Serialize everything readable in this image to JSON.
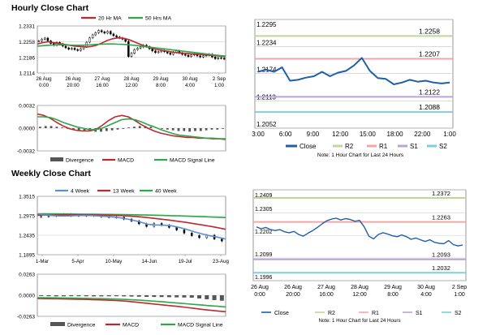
{
  "sections": {
    "hourly_title": "Hourly Close Chart",
    "weekly_title": "Weekly Close Chart"
  },
  "colors": {
    "price": "#000000",
    "ma_red": "#c0282f",
    "ma_green": "#2aa84a",
    "ma_blue": "#5a8fd0",
    "close_blue": "#1f5ea8",
    "r2": "#bcd79a",
    "r1": "#f2a7a3",
    "s1": "#b7a4d8",
    "s2": "#7fcde0",
    "divergence": "#555555",
    "grid": "#c8c8c8",
    "axis": "#808080"
  },
  "chart_data": [
    {
      "id": "hourly-price",
      "type": "line",
      "legend": [
        "20 Hr MA",
        "50 Hrs MA"
      ],
      "yticks": [
        "1.2331",
        "1.2258",
        "1.2186",
        "1.2114"
      ],
      "ylim": [
        1.2114,
        1.2331
      ],
      "xticks": [
        [
          "26 Aug",
          "0:00"
        ],
        [
          "26 Aug",
          "20:00"
        ],
        [
          "27 Aug",
          "16:00"
        ],
        [
          "28 Aug",
          "12:00"
        ],
        [
          "29 Aug",
          "8:00"
        ],
        [
          "30 Aug",
          "4:00"
        ],
        [
          "2 Sep",
          "1:00"
        ]
      ],
      "series": [
        {
          "name": "Price",
          "type": "candle",
          "values": [
            1.2262,
            1.227,
            1.2275,
            1.2262,
            1.225,
            1.2242,
            1.2255,
            1.2248,
            1.2238,
            1.223,
            1.2224,
            1.2228,
            1.2222,
            1.2218,
            1.2226,
            1.2236,
            1.2256,
            1.2276,
            1.229,
            1.23,
            1.231,
            1.2304,
            1.2298,
            1.2306,
            1.2294,
            1.2286,
            1.228,
            1.2276,
            1.227,
            1.226,
            1.219,
            1.2205,
            1.2222,
            1.2228,
            1.2234,
            1.2242,
            1.2236,
            1.2226,
            1.2216,
            1.2208,
            1.2212,
            1.2218,
            1.2212,
            1.2206,
            1.22,
            1.221,
            1.2216,
            1.2206,
            1.22,
            1.2196,
            1.219,
            1.2197,
            1.2202,
            1.2193,
            1.2188,
            1.2193,
            1.2196,
            1.22,
            1.2188,
            1.218,
            1.2184,
            1.2182,
            1.2178
          ]
        },
        {
          "name": "20 Hr MA",
          "values": [
            1.2248,
            1.2254,
            1.2258,
            1.2254,
            1.225,
            1.2246,
            1.2242,
            1.2238,
            1.2236,
            1.2234,
            1.2236,
            1.2242,
            1.2252,
            1.2264,
            1.2272,
            1.2276,
            1.2274,
            1.2268,
            1.2258,
            1.2248,
            1.2238,
            1.223,
            1.2224,
            1.2219,
            1.2215,
            1.2211,
            1.2208,
            1.2206,
            1.2204,
            1.2202,
            1.22,
            1.2198,
            1.2196,
            1.2194,
            1.2192,
            1.219
          ]
        },
        {
          "name": "50 Hrs MA",
          "values": [
            1.2238,
            1.224,
            1.2242,
            1.2243,
            1.2244,
            1.2244,
            1.2243,
            1.2242,
            1.2242,
            1.2243,
            1.2244,
            1.2246,
            1.2247,
            1.2248,
            1.2248,
            1.2247,
            1.2246,
            1.2244,
            1.2242,
            1.2239,
            1.2236,
            1.2233,
            1.223,
            1.2227,
            1.2224,
            1.2221,
            1.2218,
            1.2215,
            1.2212,
            1.2209,
            1.2206,
            1.2203,
            1.22,
            1.2197,
            1.2194,
            1.2192
          ]
        }
      ]
    },
    {
      "id": "hourly-macd",
      "type": "line",
      "legend": [
        "Divergence",
        "MACD",
        "MACD Signal Line"
      ],
      "yticks": [
        "0.0032",
        "0.0000",
        "-0.0032"
      ],
      "ylim": [
        -0.0032,
        0.0032
      ],
      "series": [
        {
          "name": "Divergence",
          "type": "bar",
          "values": [
            0.0002,
            0.0003,
            0.0003,
            0.0002,
            0.0001,
            -0.0001,
            -0.0002,
            -0.0003,
            -0.0004,
            -0.0004,
            -0.0005,
            -0.0005,
            -0.0004,
            -0.0003,
            -0.0002,
            -0.0001,
            0.0001,
            0.0002,
            0.0003,
            0.0003,
            0.0002,
            0.0001,
            -0.0001,
            -0.0002,
            -0.0003,
            -0.0004,
            -0.0004,
            -0.0005,
            -0.0004,
            -0.0004,
            -0.0003,
            -0.0002,
            -0.0002,
            -0.0001
          ]
        },
        {
          "name": "MACD",
          "values": [
            0.002,
            0.0018,
            0.0014,
            0.0008,
            0.0003,
            -0.0001,
            -0.0003,
            -0.0004,
            -0.0004,
            -0.0002,
            0.0004,
            0.0011,
            0.0016,
            0.0018,
            0.0016,
            0.0011,
            0.0005,
            0.0,
            -0.0004,
            -0.0007,
            -0.0009,
            -0.0011,
            -0.0012,
            -0.0013,
            -0.0013,
            -0.0014,
            -0.0014,
            -0.0015,
            -0.0015,
            -0.0016
          ]
        },
        {
          "name": "MACD Signal Line",
          "values": [
            0.0016,
            0.0016,
            0.0015,
            0.0012,
            0.0008,
            0.0005,
            0.0002,
            0.0,
            -0.0002,
            -0.0002,
            0.0,
            0.0004,
            0.0008,
            0.0012,
            0.0013,
            0.0012,
            0.0009,
            0.0005,
            0.0002,
            -0.0002,
            -0.0005,
            -0.0008,
            -0.001,
            -0.0011,
            -0.0012,
            -0.0013,
            -0.0014,
            -0.0014,
            -0.0015,
            -0.0015
          ]
        }
      ]
    },
    {
      "id": "hourly-pivots",
      "type": "line",
      "yticks": [
        "1.2295",
        "1.2234",
        "1.2174",
        "1.2113",
        "1.2052"
      ],
      "ylim": [
        1.2052,
        1.2295
      ],
      "xticks": [
        "3:00",
        "6:00",
        "9:00",
        "12:00",
        "15:00",
        "18:00",
        "22:00",
        "1:00"
      ],
      "levels": [
        {
          "name": "R2",
          "value": 1.2258,
          "label": "1.2258"
        },
        {
          "name": "R1",
          "value": 1.2207,
          "label": "1.2207"
        },
        {
          "name": "S1",
          "value": 1.2122,
          "label": "1.2122"
        },
        {
          "name": "S2",
          "value": 1.2088,
          "label": "1.2088"
        }
      ],
      "series": [
        {
          "name": "Close",
          "values": [
            1.2178,
            1.2183,
            1.2178,
            1.2188,
            1.2158,
            1.216,
            1.2165,
            1.2168,
            1.2178,
            1.2168,
            1.2176,
            1.218,
            1.2192,
            1.2209,
            1.218,
            1.2164,
            1.2162,
            1.215,
            1.2154,
            1.216,
            1.2156,
            1.2158,
            1.2154,
            1.2152,
            1.2154
          ]
        }
      ],
      "legend": [
        "Close",
        "R2",
        "R1",
        "S1",
        "S2"
      ],
      "note": "Note: 1 Hour Chart for Last 24 Hours"
    },
    {
      "id": "weekly-price",
      "type": "line",
      "legend": [
        "4 Week",
        "13 Week",
        "40 Week"
      ],
      "yticks": [
        "1.3515",
        "1.2975",
        "1.2435",
        "1.1895"
      ],
      "ylim": [
        1.1895,
        1.3515
      ],
      "xticks": [
        "1-Mar",
        "5-Apr",
        "10-May",
        "14-Jun",
        "19-Jul",
        "23-Aug"
      ],
      "series": [
        {
          "name": "Price",
          "type": "candle",
          "values": [
            1.2952,
            1.2968,
            1.3005,
            1.3018,
            1.2975,
            1.2983,
            1.2978,
            1.2994,
            1.2948,
            1.2931,
            1.2935,
            1.2883,
            1.283,
            1.2751,
            1.2679,
            1.2761,
            1.2713,
            1.2652,
            1.2582,
            1.2495,
            1.2423,
            1.2367,
            1.2435,
            1.233,
            1.2275
          ]
        },
        {
          "name": "4 Week",
          "values": [
            1.303,
            1.3,
            1.298,
            1.2968,
            1.297,
            1.298,
            1.2984,
            1.298,
            1.2965,
            1.295,
            1.2935,
            1.2905,
            1.286,
            1.281,
            1.274,
            1.272,
            1.2715,
            1.27,
            1.2655,
            1.26,
            1.253,
            1.247,
            1.242,
            1.238,
            1.233
          ]
        },
        {
          "name": "13 Week",
          "values": [
            1.299,
            1.2995,
            1.2998,
            1.3,
            1.3002,
            1.3003,
            1.3002,
            1.3,
            1.2996,
            1.299,
            1.2984,
            1.2975,
            1.2962,
            1.2945,
            1.2925,
            1.29,
            1.2875,
            1.285,
            1.282,
            1.279,
            1.2755,
            1.272,
            1.2685,
            1.2645,
            1.26
          ]
        },
        {
          "name": "40 Week",
          "values": [
            1.303,
            1.303,
            1.3028,
            1.3026,
            1.3024,
            1.3022,
            1.302,
            1.3018,
            1.3016,
            1.3014,
            1.3012,
            1.3008,
            1.3004,
            1.3,
            1.2995,
            1.299,
            1.2984,
            1.2978,
            1.2972,
            1.2965,
            1.2958,
            1.295,
            1.2942,
            1.2934,
            1.2925
          ]
        }
      ]
    },
    {
      "id": "weekly-macd",
      "type": "line",
      "legend": [
        "Divergence",
        "MACD",
        "MACD Signal Line"
      ],
      "yticks": [
        "0.0263",
        "0.0000",
        "-0.0263"
      ],
      "ylim": [
        -0.0263,
        0.0263
      ],
      "series": [
        {
          "name": "Divergence",
          "type": "bar",
          "values": [
            -0.001,
            -0.0012,
            -0.0014,
            -0.0013,
            -0.0012,
            -0.0012,
            -0.0013,
            -0.0014,
            -0.0014,
            -0.0013,
            -0.0012,
            -0.0014,
            -0.0016,
            -0.0018,
            -0.002,
            -0.0021,
            -0.0022,
            -0.0024,
            -0.0026,
            -0.0028,
            -0.003,
            -0.004,
            -0.005,
            -0.006,
            -0.0068
          ]
        },
        {
          "name": "MACD",
          "values": [
            -0.004,
            -0.0042,
            -0.0044,
            -0.0046,
            -0.0048,
            -0.005,
            -0.0052,
            -0.0055,
            -0.0058,
            -0.0062,
            -0.0066,
            -0.0072,
            -0.008,
            -0.009,
            -0.01,
            -0.011,
            -0.012,
            -0.013,
            -0.014,
            -0.0152,
            -0.0164,
            -0.0176,
            -0.0186,
            -0.0196,
            -0.0205
          ]
        },
        {
          "name": "MACD Signal Line",
          "values": [
            -0.003,
            -0.0031,
            -0.0032,
            -0.0033,
            -0.0034,
            -0.0036,
            -0.0038,
            -0.004,
            -0.0042,
            -0.0045,
            -0.0048,
            -0.0052,
            -0.0057,
            -0.0062,
            -0.0068,
            -0.0075,
            -0.0082,
            -0.009,
            -0.0098,
            -0.0106,
            -0.0114,
            -0.0122,
            -0.013,
            -0.0138,
            -0.0146
          ]
        }
      ]
    },
    {
      "id": "weekly-pivots",
      "type": "line",
      "yticks": [
        "1.2409",
        "1.2305",
        "1.2202",
        "1.2099",
        "1.1996"
      ],
      "ylim": [
        1.1996,
        1.2409
      ],
      "xticks": [
        [
          "26 Aug",
          "0:00"
        ],
        [
          "26 Aug",
          "20:00"
        ],
        [
          "27 Aug",
          "16:00"
        ],
        [
          "28 Aug",
          "12:00"
        ],
        [
          "29 Aug",
          "8:00"
        ],
        [
          "30 Aug",
          "4:00"
        ],
        [
          "2 Sep",
          "1:00"
        ]
      ],
      "levels": [
        {
          "name": "R2",
          "value": 1.2372,
          "label": "1.2372"
        },
        {
          "name": "R1",
          "value": 1.2263,
          "label": "1.2263"
        },
        {
          "name": "S1",
          "value": 1.2093,
          "label": "1.2093"
        },
        {
          "name": "S2",
          "value": 1.2032,
          "label": "1.2032"
        }
      ],
      "series": [
        {
          "name": "Close",
          "values": [
            1.224,
            1.2232,
            1.2238,
            1.2228,
            1.2224,
            1.2228,
            1.2218,
            1.2214,
            1.222,
            1.2206,
            1.2198,
            1.2212,
            1.2224,
            1.2238,
            1.2254,
            1.2268,
            1.2276,
            1.228,
            1.2272,
            1.2278,
            1.2274,
            1.2266,
            1.227,
            1.224,
            1.2198,
            1.2186,
            1.2206,
            1.2214,
            1.2208,
            1.22,
            1.2196,
            1.2204,
            1.2196,
            1.2184,
            1.219,
            1.2182,
            1.2174,
            1.2182,
            1.217,
            1.2166,
            1.2164,
            1.2178,
            1.216,
            1.2154,
            1.2158
          ]
        }
      ],
      "legend": [
        "Close",
        "R2",
        "R1",
        "S1",
        "S2"
      ],
      "note": "Note: 1 Hour Chart for Last 24 Hours"
    }
  ]
}
